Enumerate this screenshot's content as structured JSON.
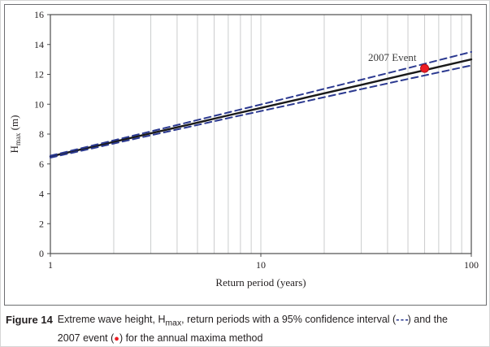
{
  "figure": {
    "caption": {
      "label": "Figure 14",
      "text_before_sub": "Extreme wave height, H",
      "subscript": "max",
      "text_after_sub": ", return periods with a 95% confidence interval (",
      "ci_symbol": "- - -",
      "text_line1_end": ") and the",
      "text_line2_start": "2007 event (",
      "event_symbol": "●",
      "text_line2_end": ") for the annual maxima method"
    }
  },
  "chart_data": {
    "type": "line",
    "title": "",
    "xlabel": "Return period (years)",
    "ylabel": "Hmax (m)",
    "ylabel_parts": {
      "pre": "H",
      "sub": "max",
      "post": " (m)"
    },
    "x_scale": "log",
    "xlim": [
      1,
      100
    ],
    "ylim": [
      0,
      16
    ],
    "x_ticks": [
      1,
      10,
      100
    ],
    "y_ticks": [
      0,
      2,
      4,
      6,
      8,
      10,
      12,
      14,
      16
    ],
    "x_minor_gridlines": [
      2,
      3,
      4,
      5,
      6,
      7,
      8,
      9,
      10,
      20,
      30,
      40,
      50,
      60,
      70,
      80,
      90
    ],
    "grid": true,
    "legend": "none",
    "colors": {
      "central": "#1a1a1a",
      "ci": "#2b3990",
      "event": "#ed1c24",
      "grid": "#cbcccd",
      "axis": "#4d4d4d"
    },
    "series": [
      {
        "name": "Annual maxima fit (central estimate)",
        "style": "solid",
        "color": "#1a1a1a",
        "width": 2.4,
        "x": [
          1,
          1.5,
          2,
          3,
          5,
          7,
          10,
          15,
          20,
          30,
          50,
          70,
          100
        ],
        "values": [
          6.5,
          7.07,
          7.48,
          8.05,
          8.77,
          9.25,
          9.75,
          10.32,
          10.73,
          11.3,
          12.02,
          12.5,
          13.0
        ]
      },
      {
        "name": "95% confidence interval (upper)",
        "style": "dashed",
        "color": "#2b3990",
        "width": 2,
        "x": [
          1,
          1.5,
          2,
          3,
          5,
          7,
          10,
          15,
          20,
          30,
          50,
          70,
          100
        ],
        "values": [
          6.55,
          7.15,
          7.58,
          8.18,
          8.94,
          9.45,
          9.98,
          10.59,
          11.03,
          11.64,
          12.42,
          12.95,
          13.5
        ]
      },
      {
        "name": "95% confidence interval (lower)",
        "style": "dashed",
        "color": "#2b3990",
        "width": 2,
        "x": [
          1,
          1.5,
          2,
          3,
          5,
          7,
          10,
          15,
          20,
          30,
          50,
          70,
          100
        ],
        "values": [
          6.42,
          6.97,
          7.37,
          7.92,
          8.61,
          9.07,
          9.54,
          10.08,
          10.47,
          11.01,
          11.69,
          12.13,
          12.6
        ]
      }
    ],
    "point": {
      "label": "2007 Event",
      "x": 60,
      "y": 12.4,
      "color": "#ed1c24"
    }
  }
}
